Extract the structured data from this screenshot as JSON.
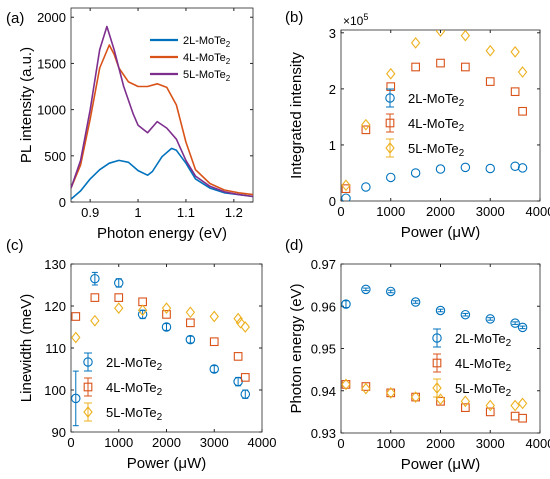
{
  "colors": {
    "c2L": "#0072BD",
    "c4L": "#D95319",
    "c5L": "#7E2F8E",
    "c5L_marker": "#EDB120"
  },
  "chart_data": [
    {
      "id": "a",
      "panel_label": "(a)",
      "type": "line",
      "xlabel": "Photon energy (eV)",
      "ylabel": "PL intensity (a.u.)",
      "xlim": [
        0.86,
        1.24
      ],
      "ylim": [
        0,
        2100
      ],
      "xticks": [
        0.9,
        1.0,
        1.1,
        1.2
      ],
      "xtick_labels": [
        "0.9",
        "1",
        "1.1",
        "1.2"
      ],
      "yticks": [
        0,
        500,
        1000,
        1500,
        2000
      ],
      "ytick_labels": [
        "0",
        "500",
        "1000",
        "1500",
        "2000"
      ],
      "legend_position": "top-right",
      "series": [
        {
          "name": "2L-MoTe",
          "sub": "2",
          "color": "#0072BD",
          "x": [
            0.86,
            0.88,
            0.9,
            0.92,
            0.94,
            0.96,
            0.98,
            1.0,
            1.02,
            1.03,
            1.05,
            1.07,
            1.08,
            1.1,
            1.12,
            1.15,
            1.18,
            1.21,
            1.24
          ],
          "y": [
            30,
            120,
            250,
            350,
            420,
            450,
            430,
            340,
            290,
            330,
            490,
            580,
            560,
            420,
            250,
            150,
            100,
            80,
            60
          ]
        },
        {
          "name": "4L-MoTe",
          "sub": "2",
          "color": "#D95319",
          "x": [
            0.86,
            0.88,
            0.9,
            0.92,
            0.94,
            0.95,
            0.96,
            0.98,
            1.0,
            1.02,
            1.04,
            1.06,
            1.08,
            1.1,
            1.12,
            1.15,
            1.18,
            1.21,
            1.24
          ],
          "y": [
            150,
            400,
            900,
            1450,
            1700,
            1600,
            1450,
            1300,
            1250,
            1250,
            1280,
            1240,
            1050,
            650,
            350,
            200,
            130,
            100,
            80
          ]
        },
        {
          "name": "5L-MoTe",
          "sub": "2",
          "color": "#7E2F8E",
          "x": [
            0.86,
            0.88,
            0.9,
            0.92,
            0.935,
            0.95,
            0.97,
            0.99,
            1.0,
            1.02,
            1.04,
            1.06,
            1.08,
            1.1,
            1.12,
            1.15,
            1.18,
            1.21,
            1.24
          ],
          "y": [
            150,
            450,
            1000,
            1650,
            1900,
            1650,
            1250,
            950,
            830,
            750,
            870,
            800,
            680,
            450,
            280,
            170,
            110,
            80,
            60
          ]
        }
      ]
    },
    {
      "id": "b",
      "panel_label": "(b)",
      "type": "scatter",
      "xlabel": "Power (μW)",
      "ylabel": "Integrated intensity",
      "exponent_label": "×10",
      "exponent_power": "5",
      "xlim": [
        0,
        4000
      ],
      "ylim": [
        0,
        3.05
      ],
      "xticks": [
        0,
        1000,
        2000,
        3000,
        4000
      ],
      "xtick_labels": [
        "0",
        "1000",
        "2000",
        "3000",
        "4000"
      ],
      "yticks": [
        0,
        1,
        2,
        3
      ],
      "ytick_labels": [
        "0",
        "1",
        "2",
        "3"
      ],
      "legend_position": "center",
      "series": [
        {
          "name": "2L-MoTe",
          "sub": "2",
          "marker": "circle",
          "color": "#0072BD",
          "x": [
            100,
            500,
            1000,
            1500,
            2000,
            2500,
            3000,
            3500,
            3650
          ],
          "y": [
            0.05,
            0.25,
            0.42,
            0.5,
            0.57,
            0.6,
            0.58,
            0.62,
            0.59
          ]
        },
        {
          "name": "4L-MoTe",
          "sub": "2",
          "marker": "square",
          "color": "#D95319",
          "x": [
            100,
            500,
            1000,
            1500,
            2000,
            2500,
            3000,
            3500,
            3650
          ],
          "y": [
            0.22,
            1.27,
            2.04,
            2.39,
            2.46,
            2.39,
            2.13,
            1.95,
            1.6
          ]
        },
        {
          "name": "5L-MoTe",
          "sub": "2",
          "marker": "diamond",
          "color": "#EDB120",
          "x": [
            100,
            500,
            1000,
            1500,
            2000,
            2500,
            3000,
            3500,
            3650
          ],
          "y": [
            0.28,
            1.36,
            2.27,
            2.82,
            3.03,
            2.95,
            2.68,
            2.66,
            2.3
          ]
        }
      ]
    },
    {
      "id": "c",
      "panel_label": "(c)",
      "type": "scatter",
      "xlabel": "Power (μW)",
      "ylabel": "Linewidth (meV)",
      "xlim": [
        0,
        4000
      ],
      "ylim": [
        90,
        130
      ],
      "xticks": [
        0,
        1000,
        2000,
        3000,
        4000
      ],
      "xtick_labels": [
        "0",
        "1000",
        "2000",
        "3000",
        "4000"
      ],
      "yticks": [
        90,
        100,
        110,
        120,
        130
      ],
      "ytick_labels": [
        "90",
        "100",
        "110",
        "120",
        "130"
      ],
      "legend_position": "bottom-left",
      "series": [
        {
          "name": "2L-MoTe",
          "sub": "2",
          "marker": "circle",
          "color": "#0072BD",
          "x": [
            100,
            500,
            1000,
            1500,
            2000,
            2500,
            3000,
            3500,
            3650
          ],
          "y": [
            98,
            126.5,
            125.5,
            118,
            115,
            112,
            105,
            102,
            99
          ],
          "err": [
            6.5,
            1.5,
            1,
            1,
            0.8,
            0.8,
            0.8,
            1,
            1
          ]
        },
        {
          "name": "4L-MoTe",
          "sub": "2",
          "marker": "square",
          "color": "#D95319",
          "x": [
            100,
            500,
            1000,
            1500,
            2000,
            2500,
            3000,
            3500,
            3650
          ],
          "y": [
            117.5,
            122,
            122,
            121,
            118,
            116,
            111.5,
            108,
            103
          ]
        },
        {
          "name": "5L-MoTe",
          "sub": "2",
          "marker": "diamond",
          "color": "#EDB120",
          "x": [
            100,
            500,
            1000,
            1500,
            2000,
            2500,
            3000,
            3500,
            3550,
            3650
          ],
          "y": [
            112.5,
            116.5,
            119.5,
            119,
            119.5,
            118.5,
            117.5,
            117,
            116,
            115
          ]
        }
      ]
    },
    {
      "id": "d",
      "panel_label": "(d)",
      "type": "scatter",
      "xlabel": "Power (μW)",
      "ylabel": "Photon energy (eV)",
      "xlim": [
        0,
        4000
      ],
      "ylim": [
        0.93,
        0.97
      ],
      "xticks": [
        0,
        1000,
        2000,
        3000,
        4000
      ],
      "xtick_labels": [
        "0",
        "1000",
        "2000",
        "3000",
        "4000"
      ],
      "yticks": [
        0.93,
        0.94,
        0.95,
        0.96,
        0.97
      ],
      "ytick_labels": [
        "0.93",
        "0.94",
        "0.95",
        "0.96",
        "0.97"
      ],
      "legend_position": "bottom-right",
      "series": [
        {
          "name": "2L-MoTe",
          "sub": "2",
          "marker": "circle",
          "color": "#0072BD",
          "x": [
            100,
            500,
            1000,
            1500,
            2000,
            2500,
            3000,
            3500,
            3650
          ],
          "y": [
            0.9605,
            0.964,
            0.9635,
            0.961,
            0.959,
            0.958,
            0.957,
            0.956,
            0.955
          ],
          "err": [
            0.0008,
            0.0003,
            0.0003,
            0.0003,
            0.0003,
            0.0003,
            0.0003,
            0.0003,
            0.0003
          ]
        },
        {
          "name": "4L-MoTe",
          "sub": "2",
          "marker": "square",
          "color": "#D95319",
          "x": [
            100,
            500,
            1000,
            1500,
            2000,
            2500,
            3000,
            3500,
            3650
          ],
          "y": [
            0.9415,
            0.941,
            0.9395,
            0.9385,
            0.9375,
            0.936,
            0.935,
            0.934,
            0.9335
          ]
        },
        {
          "name": "5L-MoTe",
          "sub": "2",
          "marker": "diamond",
          "color": "#EDB120",
          "x": [
            100,
            500,
            1000,
            1500,
            2000,
            2500,
            3000,
            3500,
            3650
          ],
          "y": [
            0.9415,
            0.9405,
            0.9395,
            0.9385,
            0.938,
            0.9375,
            0.9365,
            0.9365,
            0.937
          ]
        }
      ]
    }
  ]
}
